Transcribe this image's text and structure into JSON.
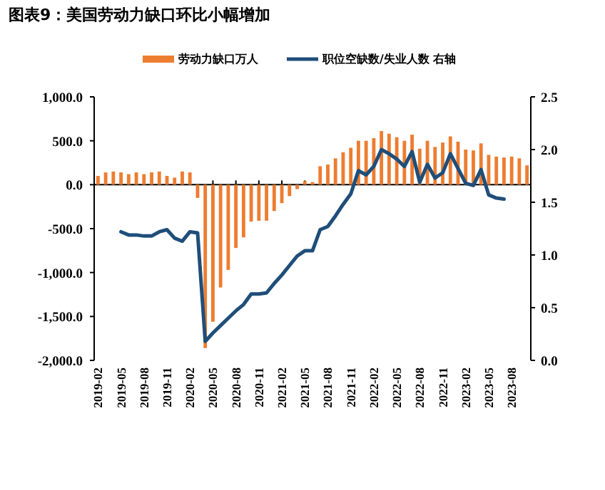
{
  "chart_data": {
    "type": "bar",
    "title": "图表9：美国劳动力缺口环比小幅增加",
    "categories": [
      "2019-02",
      null,
      null,
      "2019-05",
      null,
      null,
      "2019-08",
      null,
      null,
      "2019-11",
      null,
      null,
      "2020-02",
      null,
      null,
      "2020-05",
      null,
      null,
      "2020-08",
      null,
      null,
      "2020-11",
      null,
      null,
      "2021-02",
      null,
      null,
      "2021-05",
      null,
      null,
      "2021-08",
      null,
      null,
      "2021-11",
      null,
      null,
      "2022-02",
      null,
      null,
      "2022-05",
      null,
      null,
      "2022-08",
      null,
      null,
      "2022-11",
      null,
      null,
      "2023-02",
      null,
      null,
      "2023-05",
      null,
      null,
      "2023-08",
      null,
      null
    ],
    "series": [
      {
        "name": "劳动力缺口万人",
        "color": "#ed7d31",
        "values": [
          100,
          140,
          150,
          140,
          120,
          140,
          120,
          140,
          150,
          100,
          80,
          150,
          140,
          -150,
          -1860,
          -1560,
          -1170,
          -970,
          -720,
          -600,
          -420,
          -410,
          -410,
          -300,
          -210,
          -130,
          -50,
          40,
          30,
          210,
          230,
          300,
          370,
          420,
          500,
          500,
          530,
          610,
          580,
          540,
          500,
          570,
          410,
          500,
          430,
          480,
          550,
          490,
          400,
          390,
          470,
          340,
          320,
          310,
          320,
          300,
          220
        ]
      },
      {
        "name": "职位空缺数/失业人数 右轴",
        "type": "line",
        "axis": "y2",
        "color": "#1f4e79",
        "values": [
          null,
          null,
          null,
          1.22,
          1.19,
          1.19,
          1.18,
          1.18,
          1.22,
          1.24,
          1.16,
          1.13,
          1.22,
          1.21,
          0.18,
          0.26,
          0.33,
          0.4,
          0.47,
          0.53,
          0.63,
          0.63,
          0.64,
          0.73,
          0.81,
          0.9,
          0.99,
          1.04,
          1.04,
          1.24,
          1.27,
          1.37,
          1.48,
          1.58,
          1.8,
          1.76,
          1.84,
          2.0,
          1.96,
          1.91,
          1.84,
          1.98,
          1.69,
          1.86,
          1.73,
          1.78,
          1.96,
          1.82,
          1.68,
          1.66,
          1.81,
          1.57,
          1.54,
          1.53,
          null,
          null,
          null
        ]
      }
    ],
    "ylim": [
      -2000,
      1000
    ],
    "yticks": [
      {
        "value": -2000,
        "label": "-2,000.0"
      },
      {
        "value": -1500,
        "label": "-1,500.0"
      },
      {
        "value": -1000,
        "label": "-1,000.0"
      },
      {
        "value": -500,
        "label": "-500.0"
      },
      {
        "value": 0,
        "label": "0.0"
      },
      {
        "value": 500,
        "label": "500.0"
      },
      {
        "value": 1000,
        "label": "1,000.0"
      }
    ],
    "y2lim": [
      0,
      2.5
    ],
    "y2ticks": [
      {
        "value": 0,
        "label": "0.0"
      },
      {
        "value": 0.5,
        "label": "0.5"
      },
      {
        "value": 1,
        "label": "1.0"
      },
      {
        "value": 1.5,
        "label": "1.5"
      },
      {
        "value": 2,
        "label": "2.0"
      },
      {
        "value": 2.5,
        "label": "2.5"
      }
    ],
    "legend": "top"
  }
}
